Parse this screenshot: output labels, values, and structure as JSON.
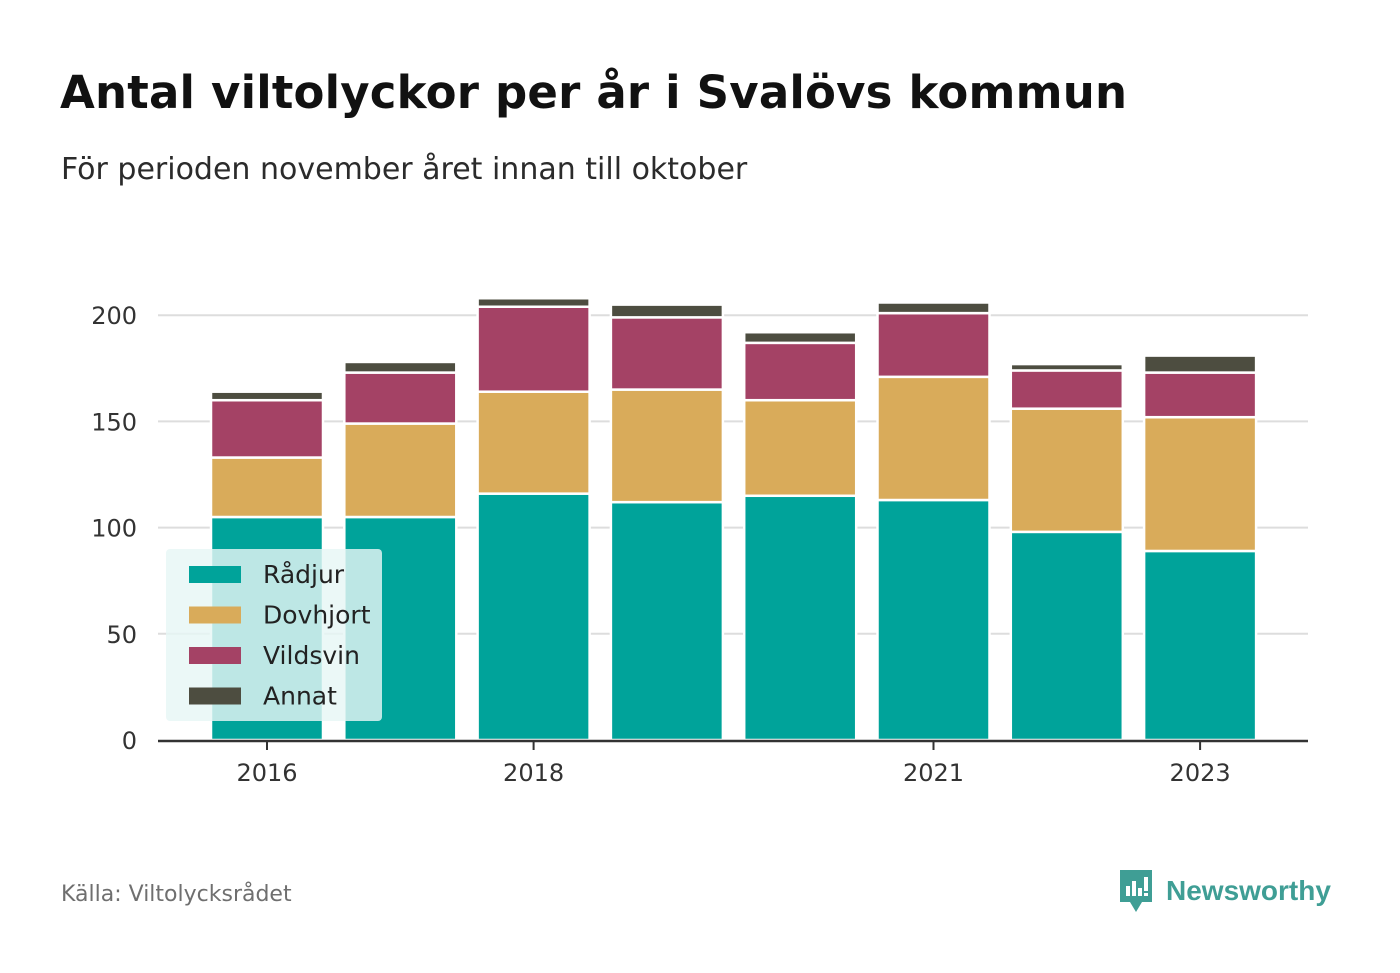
{
  "title": "Antal viltolyckor per år i Svalövs kommun",
  "subtitle": "För perioden november året innan till oktober",
  "source": "Källa: Viltolycksrådet",
  "brand": {
    "name": "Newsworthy",
    "icon": "newsworthy-logo-icon",
    "color": "#3f9e95"
  },
  "chart_data": {
    "type": "bar",
    "stacked": true,
    "categories": [
      "2016",
      "2017",
      "2018",
      "2019",
      "2020",
      "2021",
      "2022",
      "2023"
    ],
    "x_tick_labels": [
      "2016",
      "",
      "2018",
      "",
      "",
      "2021",
      "",
      "2023"
    ],
    "series": [
      {
        "name": "Rådjur",
        "color": "#00a39a",
        "values": [
          105,
          105,
          116,
          112,
          115,
          113,
          98,
          89
        ]
      },
      {
        "name": "Dovhjort",
        "color": "#d9ab5a",
        "values": [
          28,
          44,
          48,
          53,
          45,
          58,
          58,
          63
        ]
      },
      {
        "name": "Vildsvin",
        "color": "#a44265",
        "values": [
          27,
          24,
          40,
          34,
          27,
          30,
          18,
          21
        ]
      },
      {
        "name": "Annat",
        "color": "#4d4d40",
        "values": [
          4,
          5,
          4,
          6,
          5,
          5,
          3,
          8
        ]
      }
    ],
    "ylim": [
      0,
      210
    ],
    "yticks": [
      0,
      50,
      100,
      150,
      200
    ],
    "grid": true,
    "legend": "bottom-left",
    "xlabel": "",
    "ylabel": ""
  }
}
